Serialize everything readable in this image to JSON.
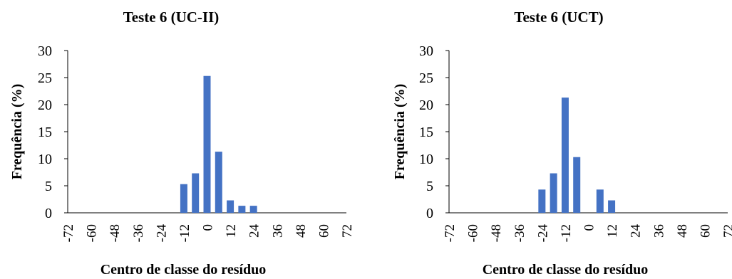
{
  "colors": {
    "bar": "#4472C4",
    "axis": "#000000",
    "background": "#ffffff"
  },
  "chart_data": [
    {
      "type": "bar",
      "title": "Teste 6 (UC-II)",
      "xlabel": "Centro de classe do resíduo",
      "ylabel": "Frequência (%)",
      "ylim": [
        0,
        30
      ],
      "yticks": [
        "0",
        "5",
        "10",
        "15",
        "20",
        "25",
        "30"
      ],
      "categories": [
        "-72",
        "-66",
        "-60",
        "-54",
        "-48",
        "-42",
        "-36",
        "-30",
        "-24",
        "-18",
        "-12",
        "-6",
        "0",
        "6",
        "12",
        "18",
        "24",
        "30",
        "36",
        "42",
        "48",
        "54",
        "60",
        "66",
        "72"
      ],
      "xtick_labels": [
        "-72",
        "-60",
        "-48",
        "-36",
        "-24",
        "-12",
        "0",
        "12",
        "24",
        "36",
        "48",
        "60",
        "72"
      ],
      "values": [
        0,
        0,
        0,
        0,
        0,
        0,
        0,
        0,
        0,
        0,
        5.3,
        7.3,
        25.3,
        11.3,
        2.3,
        1.3,
        1.3,
        0,
        0,
        0,
        0,
        0,
        0,
        0,
        0
      ],
      "grid": false,
      "legend": "none"
    },
    {
      "type": "bar",
      "title": "Teste 6 (UCT)",
      "xlabel": "Centro de classe do resíduo",
      "ylabel": "Frequência (%)",
      "ylim": [
        0,
        30
      ],
      "yticks": [
        "0",
        "5",
        "10",
        "15",
        "20",
        "25",
        "30"
      ],
      "categories": [
        "-72",
        "-66",
        "-60",
        "-54",
        "-48",
        "-42",
        "-36",
        "-30",
        "-24",
        "-18",
        "-12",
        "-6",
        "0",
        "6",
        "12",
        "18",
        "24",
        "30",
        "36",
        "42",
        "48",
        "54",
        "60",
        "66",
        "72"
      ],
      "xtick_labels": [
        "-72",
        "-60",
        "-48",
        "-36",
        "-24",
        "-12",
        "0",
        "12",
        "24",
        "36",
        "48",
        "60",
        "72"
      ],
      "values": [
        0,
        0,
        0,
        0,
        0,
        0,
        0,
        0,
        4.3,
        7.3,
        21.3,
        10.3,
        0,
        4.3,
        2.3,
        0,
        0,
        0,
        0,
        0,
        0,
        0,
        0,
        0,
        0
      ],
      "grid": false,
      "legend": "none"
    }
  ]
}
